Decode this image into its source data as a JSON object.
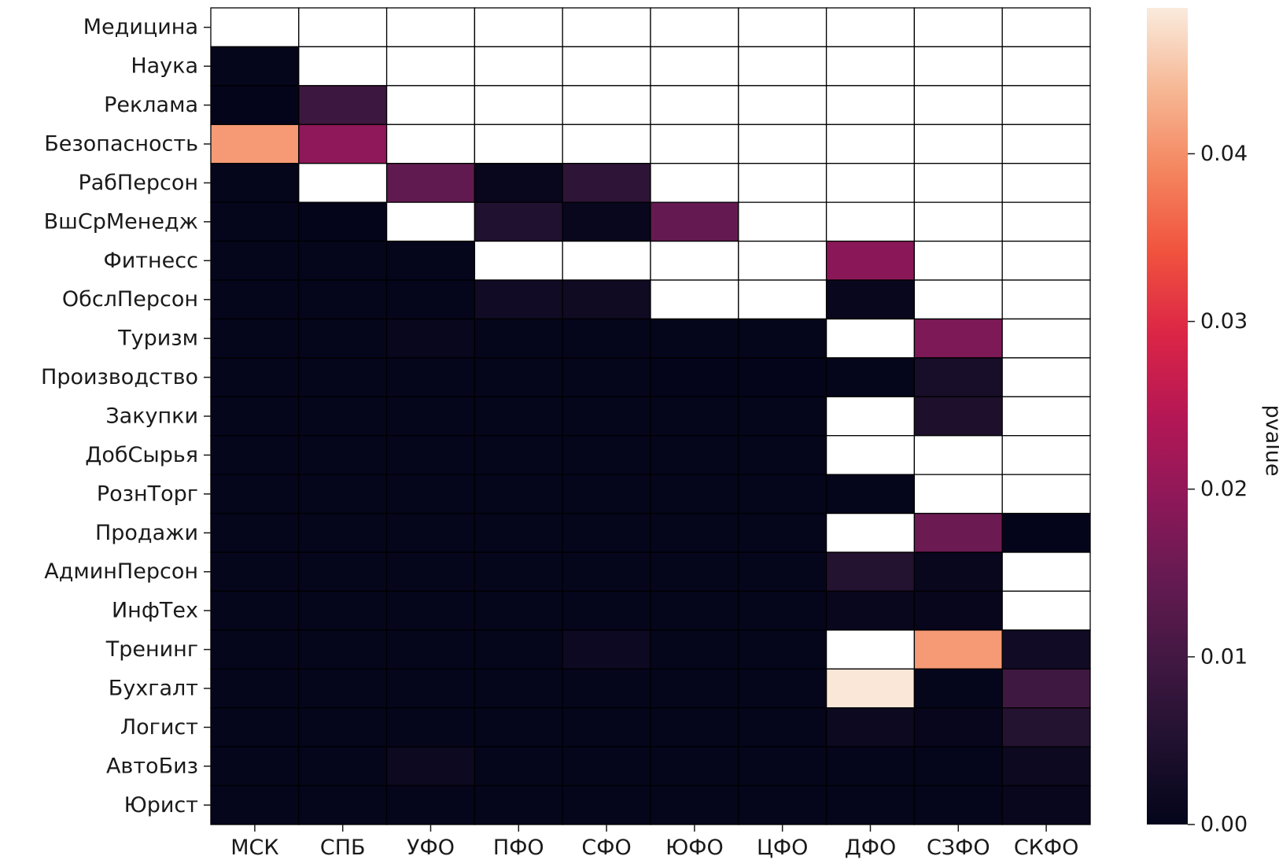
{
  "chart_data": {
    "type": "heatmap",
    "title": "",
    "xlabel": "",
    "ylabel": "",
    "colorbar": {
      "label": "pvalue",
      "range": [
        0,
        0.0487
      ],
      "ticks": [
        "0.00",
        "0.01",
        "0.02",
        "0.03",
        "0.04"
      ],
      "tick_values": [
        0,
        0.01,
        0.02,
        0.03,
        0.04
      ],
      "colormap": "rocket"
    },
    "columns": [
      "МСК",
      "СПБ",
      "УФО",
      "ПФО",
      "СФО",
      "ЮФО",
      "ЦФО",
      "ДФО",
      "СЗФО",
      "СКФО"
    ],
    "rows": [
      "Медицина",
      "Наука",
      "Реклама",
      "Безопасность",
      "РабПерсон",
      "ВшСрМенедж",
      "Фитнесс",
      "ОбслПерсон",
      "Туризм",
      "Производство",
      "Закупки",
      "ДобСырья",
      "РознТорг",
      "Продажи",
      "АдминПерсон",
      "ИнфТех",
      "Тренинг",
      "Бухгалт",
      "Логист",
      "АвтоБиз",
      "Юрист"
    ],
    "values": [
      [
        null,
        null,
        null,
        null,
        null,
        null,
        null,
        null,
        null,
        null
      ],
      [
        0.0003,
        null,
        null,
        null,
        null,
        null,
        null,
        null,
        null,
        null
      ],
      [
        0.0002,
        0.009,
        null,
        null,
        null,
        null,
        null,
        null,
        null,
        null
      ],
      [
        0.041,
        0.0195,
        null,
        null,
        null,
        null,
        null,
        null,
        null,
        null
      ],
      [
        0.0003,
        null,
        0.014,
        0.0008,
        0.007,
        null,
        null,
        null,
        null,
        null
      ],
      [
        0.0004,
        0.0002,
        null,
        0.005,
        0.0008,
        0.0145,
        null,
        null,
        null,
        null
      ],
      [
        0.0004,
        0.0003,
        0.0004,
        null,
        null,
        null,
        null,
        0.019,
        null,
        null
      ],
      [
        0.0004,
        0.0004,
        0.0004,
        0.0025,
        0.0022,
        null,
        null,
        0.0008,
        null,
        null
      ],
      [
        0.0004,
        0.0004,
        0.0008,
        0.0004,
        0.0004,
        0.0003,
        0.0003,
        null,
        0.0175,
        null
      ],
      [
        0.0004,
        0.0004,
        0.0004,
        0.0003,
        0.0003,
        0.0002,
        0.0002,
        0.0004,
        0.0035,
        null
      ],
      [
        0.0004,
        0.0004,
        0.0004,
        0.0004,
        0.0004,
        0.0004,
        0.0003,
        null,
        0.0045,
        null
      ],
      [
        0.0004,
        0.0004,
        0.0004,
        0.0004,
        0.0004,
        0.0004,
        0.0004,
        null,
        null,
        null
      ],
      [
        0.0004,
        0.0004,
        0.0004,
        0.0004,
        0.0004,
        0.0004,
        0.0004,
        0.0003,
        null,
        null
      ],
      [
        0.0004,
        0.0004,
        0.0004,
        0.0004,
        0.0004,
        0.0004,
        0.0004,
        null,
        0.0155,
        0.0002
      ],
      [
        0.0004,
        0.0004,
        0.0004,
        0.0004,
        0.0004,
        0.0004,
        0.0004,
        0.0055,
        0.0008,
        null
      ],
      [
        0.0004,
        0.0004,
        0.0004,
        0.0004,
        0.0004,
        0.0004,
        0.0004,
        0.0008,
        0.0006,
        null
      ],
      [
        0.0004,
        0.0004,
        0.0004,
        0.0004,
        0.0018,
        0.0004,
        0.0004,
        null,
        0.041,
        0.0025
      ],
      [
        0.0004,
        0.0004,
        0.0004,
        0.0004,
        0.0004,
        0.0004,
        0.0004,
        0.0483,
        0.0004,
        0.0095
      ],
      [
        0.0004,
        0.0004,
        0.0004,
        0.0004,
        0.0004,
        0.0004,
        0.0004,
        0.0015,
        0.0006,
        0.0055
      ],
      [
        0.0004,
        0.0004,
        0.0015,
        0.0004,
        0.0004,
        0.0004,
        0.0004,
        0.0004,
        0.0004,
        0.0015
      ],
      [
        0.0004,
        0.0004,
        0.0004,
        0.0004,
        0.0004,
        0.0004,
        0.0004,
        0.0004,
        0.0004,
        0.0008
      ]
    ],
    "missing_color": "#ffffff",
    "grid": true,
    "legend": "colorbar-right"
  }
}
